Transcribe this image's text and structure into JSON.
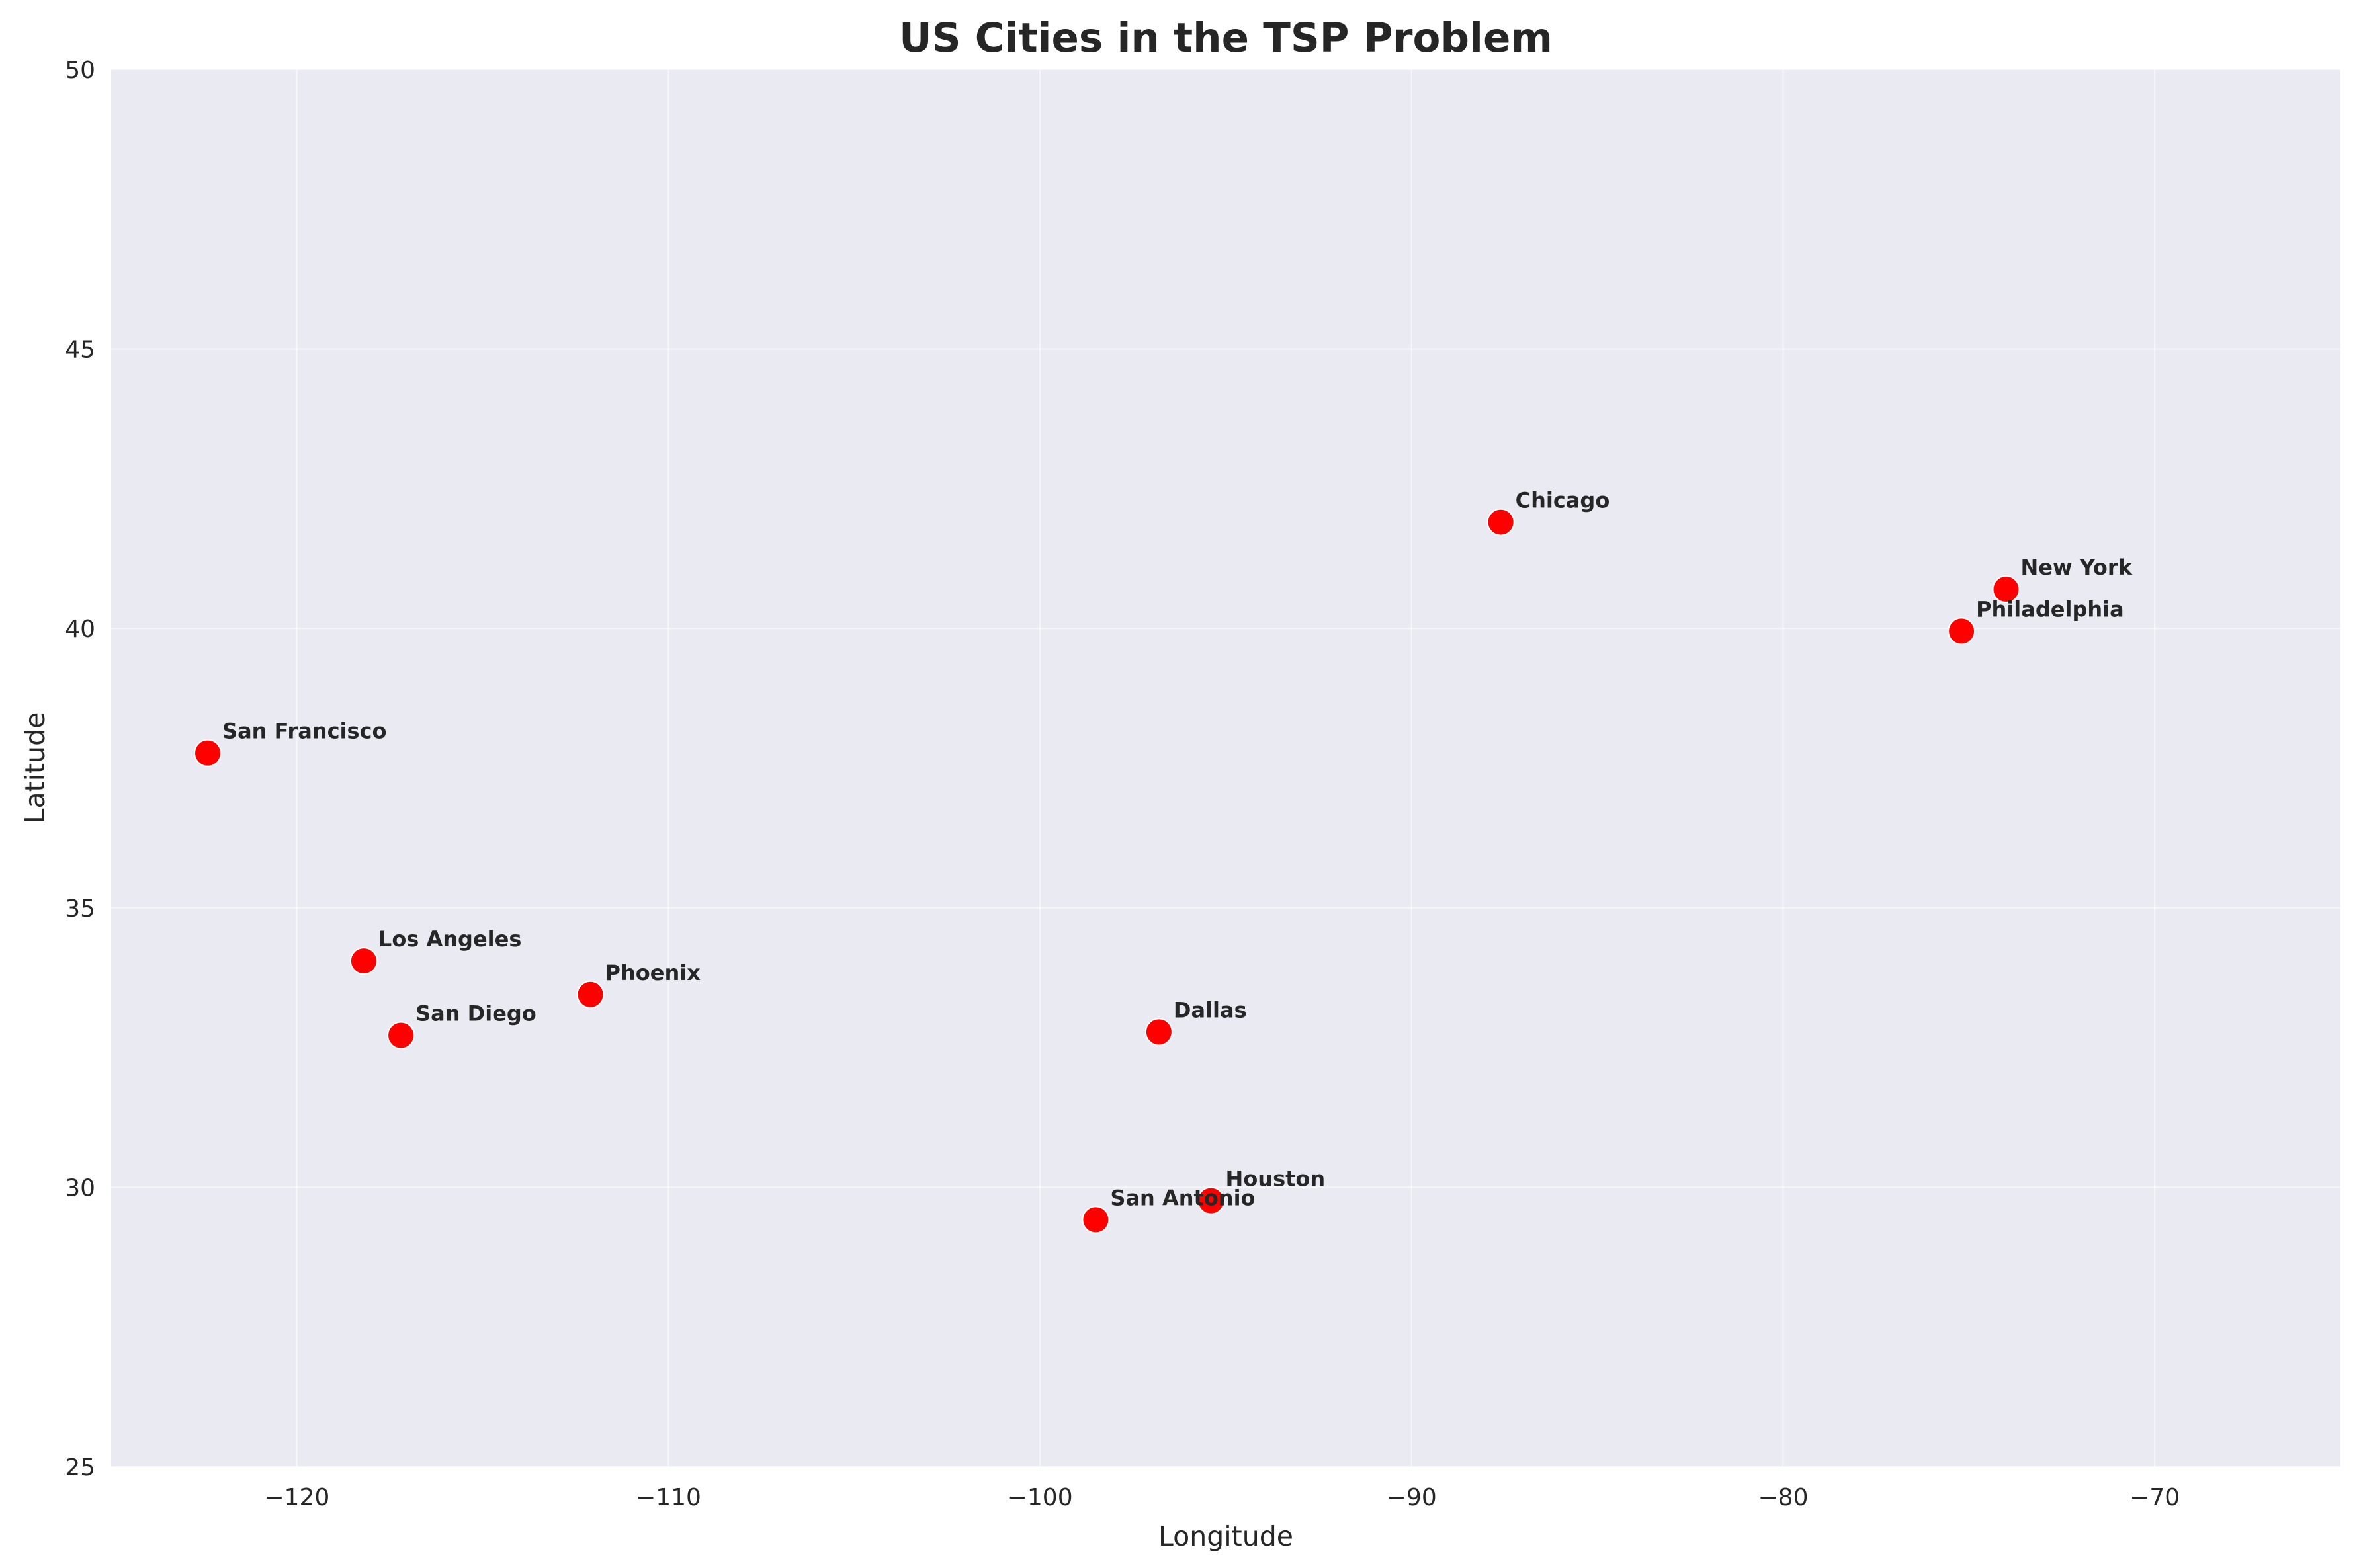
{
  "chart_data": {
    "type": "scatter",
    "title": "US Cities in the TSP Problem",
    "xlabel": "Longitude",
    "ylabel": "Latitude",
    "xlim": [
      -125,
      -65
    ],
    "ylim": [
      25,
      50
    ],
    "x_ticks": [
      -120,
      -110,
      -100,
      -90,
      -80,
      -70
    ],
    "x_tick_labels": [
      "−120",
      "−110",
      "−100",
      "−90",
      "−80",
      "−70"
    ],
    "y_ticks": [
      25,
      30,
      35,
      40,
      45,
      50
    ],
    "y_tick_labels": [
      "25",
      "30",
      "35",
      "40",
      "45",
      "50"
    ],
    "grid": true,
    "colors": {
      "plot_background": "#eaeaf2",
      "grid": "#ffffff",
      "marker": "#ff0000",
      "text": "#262626"
    },
    "points": [
      {
        "name": "New York",
        "x": -74.0,
        "y": 40.7
      },
      {
        "name": "Los Angeles",
        "x": -118.2,
        "y": 34.05
      },
      {
        "name": "Chicago",
        "x": -87.6,
        "y": 41.9
      },
      {
        "name": "Houston",
        "x": -95.4,
        "y": 29.76
      },
      {
        "name": "Phoenix",
        "x": -112.1,
        "y": 33.45
      },
      {
        "name": "Philadelphia",
        "x": -75.2,
        "y": 39.95
      },
      {
        "name": "San Antonio",
        "x": -98.5,
        "y": 29.42
      },
      {
        "name": "San Diego",
        "x": -117.2,
        "y": 32.72
      },
      {
        "name": "Dallas",
        "x": -96.8,
        "y": 32.78
      },
      {
        "name": "San Francisco",
        "x": -122.4,
        "y": 37.77
      }
    ]
  }
}
